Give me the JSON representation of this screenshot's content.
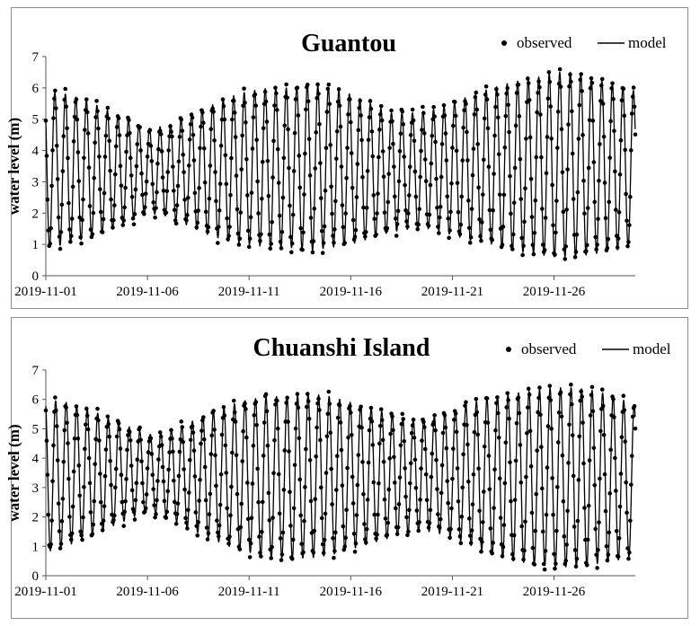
{
  "chart_data": [
    {
      "type": "line",
      "title": "Guantou",
      "ylabel": "water level  (m)",
      "xlabel": "",
      "ylim": [
        0,
        7
      ],
      "yticks": [
        "0",
        "1",
        "2",
        "3",
        "4",
        "5",
        "6",
        "7"
      ],
      "xlim": [
        "2019-11-01",
        "2019-11-30"
      ],
      "xticks": [
        "2019-11-01",
        "2019-11-06",
        "2019-11-11",
        "2019-11-16",
        "2019-11-21",
        "2019-11-26"
      ],
      "legend": {
        "position": "top-right",
        "entries": [
          "observed",
          "model"
        ]
      },
      "series": [
        {
          "name": "observed",
          "style": "dots"
        },
        {
          "name": "model",
          "style": "line"
        }
      ],
      "tide_envelope": {
        "days": [
          0,
          1,
          2,
          3,
          4,
          5,
          6,
          7,
          8,
          9,
          10,
          11,
          12,
          13,
          14,
          15,
          16,
          17,
          18,
          19,
          20,
          21,
          22,
          23,
          24,
          25,
          26,
          27,
          28,
          29
        ],
        "high_water": [
          5.9,
          5.8,
          5.6,
          5.3,
          5.0,
          4.7,
          4.8,
          5.1,
          5.4,
          5.7,
          5.9,
          6.0,
          6.0,
          6.1,
          6.0,
          5.8,
          5.5,
          5.2,
          5.2,
          5.3,
          5.5,
          5.8,
          6.0,
          6.2,
          6.3,
          6.5,
          6.5,
          6.3,
          6.1,
          5.9
        ],
        "low_water": [
          0.9,
          1.0,
          1.2,
          1.4,
          1.7,
          2.0,
          1.9,
          1.6,
          1.3,
          1.1,
          1.0,
          0.9,
          0.9,
          0.8,
          0.9,
          1.0,
          1.2,
          1.4,
          1.5,
          1.5,
          1.3,
          1.1,
          1.0,
          0.8,
          0.7,
          0.6,
          0.6,
          0.7,
          0.8,
          1.0
        ]
      }
    },
    {
      "type": "line",
      "title": "Chuanshi Island",
      "ylabel": "water level  (m)",
      "xlabel": "",
      "ylim": [
        0,
        7
      ],
      "yticks": [
        "0",
        "1",
        "2",
        "3",
        "4",
        "5",
        "6",
        "7"
      ],
      "xlim": [
        "2019-11-01",
        "2019-11-30"
      ],
      "xticks": [
        "2019-11-01",
        "2019-11-06",
        "2019-11-11",
        "2019-11-16",
        "2019-11-21",
        "2019-11-26"
      ],
      "legend": {
        "position": "top-right",
        "entries": [
          "observed",
          "model"
        ]
      },
      "series": [
        {
          "name": "observed",
          "style": "dots"
        },
        {
          "name": "model",
          "style": "line"
        }
      ],
      "tide_envelope": {
        "days": [
          0,
          1,
          2,
          3,
          4,
          5,
          6,
          7,
          8,
          9,
          10,
          11,
          12,
          13,
          14,
          15,
          16,
          17,
          18,
          19,
          20,
          21,
          22,
          23,
          24,
          25,
          26,
          27,
          28,
          29
        ],
        "high_water": [
          6.0,
          5.9,
          5.7,
          5.4,
          5.1,
          4.8,
          4.9,
          5.2,
          5.5,
          5.8,
          6.0,
          6.1,
          6.1,
          6.2,
          6.1,
          5.9,
          5.7,
          5.5,
          5.3,
          5.4,
          5.6,
          5.9,
          6.1,
          6.2,
          6.3,
          6.4,
          6.4,
          6.3,
          6.1,
          5.8
        ],
        "low_water": [
          0.8,
          1.0,
          1.3,
          1.6,
          1.9,
          2.2,
          2.0,
          1.6,
          1.3,
          1.0,
          0.8,
          0.6,
          0.6,
          0.6,
          0.7,
          0.9,
          1.1,
          1.3,
          1.5,
          1.5,
          1.3,
          1.0,
          0.7,
          0.5,
          0.4,
          0.3,
          0.3,
          0.4,
          0.5,
          0.7
        ]
      }
    }
  ]
}
